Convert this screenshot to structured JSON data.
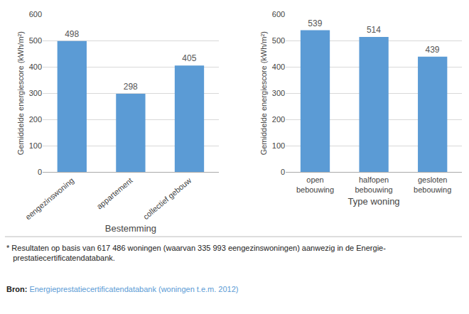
{
  "chart_data": [
    {
      "type": "bar",
      "categories": [
        "eengezinswoning",
        "appartement",
        "collectief gebouw"
      ],
      "values": [
        498,
        298,
        405
      ],
      "x_label": "Bestemming",
      "y_label": "Gemiddelde energiescore (kWh/m²)",
      "ylim": [
        0,
        600
      ],
      "yticks": [
        0,
        100,
        200,
        300,
        400,
        500,
        600
      ],
      "color": "#5B9BD5",
      "grid": true,
      "data_labels": true
    },
    {
      "type": "bar",
      "categories": [
        "open\nbebouwing",
        "halfopen\nbebouwing",
        "gesloten\nbebouwing"
      ],
      "values": [
        539,
        514,
        439
      ],
      "x_label": "Type woning",
      "y_label": "Gemiddelde energiescore (kWh/m²)",
      "ylim": [
        0,
        600
      ],
      "yticks": [
        0,
        100,
        200,
        300,
        400,
        500,
        600
      ],
      "color": "#5B9BD5",
      "grid": true,
      "data_labels": true
    }
  ],
  "annotations": [
    "* Resultaten op basis van 617 486 woningen (waarvan 335 993 eengezinswoningen) aanwezig in de Energie-\n   prestatiecertificatendatabank.",
    "Bron:",
    " Energieprestatiecertificatendatabank (woningen t.e.m. 2012)"
  ]
}
